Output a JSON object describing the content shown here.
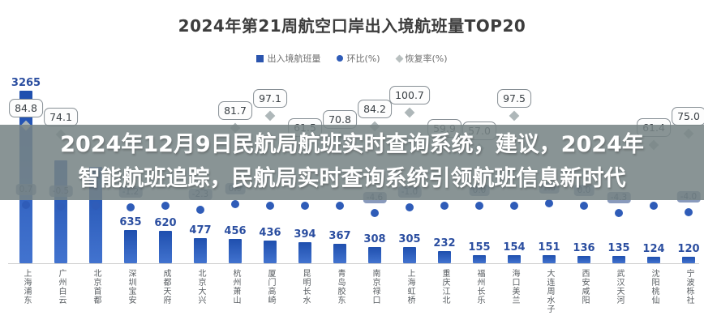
{
  "banner": {
    "line1": "2024年12月9日民航局航班实时查询系统，建议，2024年",
    "line2": "智能航班追踪，民航局实时查询系统引领航班信息新时代"
  },
  "chart_data": {
    "type": "bar",
    "title": "2024年第21周航空口岸出入境航班量TOP20",
    "legend": [
      {
        "label": "出入境航班量",
        "marker": "square",
        "color": "#2b55ae"
      },
      {
        "label": "环比(%)",
        "marker": "circle",
        "color": "#2f5cb8"
      },
      {
        "label": "恢复率(%)",
        "marker": "diamond",
        "color": "#b9c0c0"
      }
    ],
    "categories": [
      "上海浦东",
      "广州白云",
      "北京首都",
      "深圳宝安",
      "成都天府",
      "北京大兴",
      "杭州萧山",
      "厦门高崎",
      "昆明长水",
      "青岛胶东",
      "南京禄口",
      "上海虹桥",
      "重庆江北",
      "福州长乐",
      "海口美兰",
      "大连周水子",
      "西安咸阳",
      "武汉天河",
      "沈阳桃仙",
      "宁波栎社"
    ],
    "series": [
      {
        "name": "出入境航班量",
        "type": "bar",
        "values": [
          3265,
          null,
          null,
          635,
          620,
          477,
          456,
          436,
          394,
          367,
          308,
          305,
          232,
          155,
          154,
          151,
          136,
          135,
          124,
          120
        ]
      },
      {
        "name": "环比(%)",
        "type": "scatter",
        "values": [
          "0.7",
          "-0.5",
          null,
          "-1.2",
          null,
          "-2.3",
          "0.9",
          null,
          null,
          null,
          "-4.6",
          "-1.0",
          null,
          "0.0",
          null,
          "1.5",
          "0.0",
          "-4.3",
          null,
          "-4.0"
        ]
      },
      {
        "name": "恢复率(%)",
        "type": "scatter",
        "values": [
          "84.8",
          "74.1",
          null,
          null,
          null,
          null,
          "81.7",
          "97.1",
          "61.5",
          "70.8",
          "84.2",
          "100.7",
          "59.9",
          "57.0",
          "97.5",
          null,
          null,
          null,
          "61.4",
          "75.0"
        ]
      }
    ],
    "ylim": [
      0,
      3500
    ],
    "grid": false,
    "legend_position": "top"
  },
  "colors": {
    "bar_blue_top": "#1f4fae",
    "bar_blue_bottom": "#4273cf",
    "value_label_blue": "#2b4ea0",
    "marker_gray": "#b9c0c0",
    "banner_gray": "#7d8485",
    "banner_text": "#ffffff"
  }
}
